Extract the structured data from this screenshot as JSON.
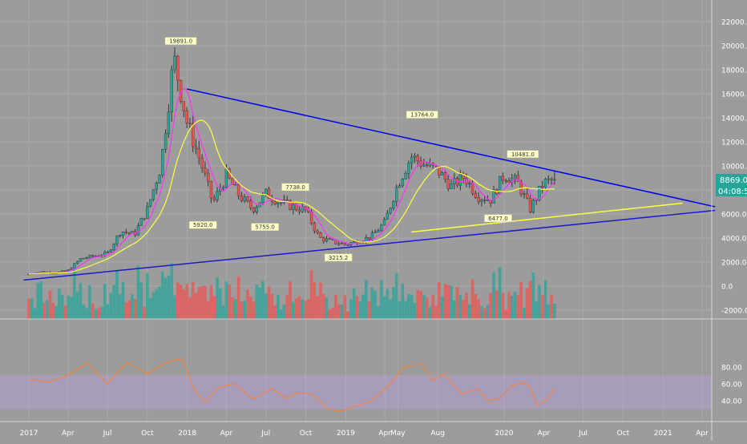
{
  "chart_data": [
    {
      "type": "candlestick",
      "title": "",
      "instrument_hint": "weekly candles",
      "x_ticks": [
        "2017",
        "Apr",
        "Jul",
        "Oct",
        "2018",
        "Apr",
        "Jul",
        "Oct",
        "2019",
        "Apr",
        "May",
        "Aug",
        "2020",
        "Apr",
        "Jul",
        "Oct",
        "2021",
        "Apr"
      ],
      "x_tick_dates": [
        "2017-01-01",
        "2017-04-01",
        "2017-07-01",
        "2017-10-01",
        "2018-01-01",
        "2018-04-01",
        "2018-07-01",
        "2018-10-01",
        "2019-01-01",
        "2019-04-01",
        "2019-05-01",
        "2019-08-01",
        "2020-01-01",
        "2020-04-01",
        "2020-07-01",
        "2020-10-01",
        "2021-01-01",
        "2021-04-01"
      ],
      "y_ticks": [
        "22000.0",
        "20000.0",
        "18000.0",
        "16000.0",
        "14000.0",
        "12000.0",
        "10000.0",
        "8000.0",
        "6000.0",
        "4000.0",
        "2000.0",
        "0.0",
        "-2000.0"
      ],
      "ylim": [
        -2000,
        22000
      ],
      "last_price_label": "8869.0",
      "countdown_label": "04:08:54",
      "peak_labels": [
        {
          "text": "19891.0",
          "date": "2017-12-17",
          "price": 19891
        },
        {
          "text": "5920.0",
          "date": "2018-02-06",
          "price": 5920
        },
        {
          "text": "5755.0",
          "date": "2018-06-29",
          "price": 5755
        },
        {
          "text": "7738.0",
          "date": "2018-09-07",
          "price": 7738
        },
        {
          "text": "3215.2",
          "date": "2018-12-15",
          "price": 3215
        },
        {
          "text": "13764.0",
          "date": "2019-06-26",
          "price": 13764
        },
        {
          "text": "6477.0",
          "date": "2019-12-18",
          "price": 6477
        },
        {
          "text": "10481.0",
          "date": "2020-02-13",
          "price": 10481
        }
      ],
      "series": [
        {
          "type": "candlestick",
          "close": [
            {
              "date": "2017-01-01",
              "close": 1000
            },
            {
              "date": "2017-02-01",
              "close": 1200
            },
            {
              "date": "2017-03-01",
              "close": 1100
            },
            {
              "date": "2017-04-01",
              "close": 1300
            },
            {
              "date": "2017-05-01",
              "close": 2300
            },
            {
              "date": "2017-06-01",
              "close": 2500
            },
            {
              "date": "2017-07-01",
              "close": 2700
            },
            {
              "date": "2017-08-01",
              "close": 4600
            },
            {
              "date": "2017-09-01",
              "close": 4300
            },
            {
              "date": "2017-10-01",
              "close": 6400
            },
            {
              "date": "2017-11-01",
              "close": 10000
            },
            {
              "date": "2017-12-01",
              "close": 19000
            },
            {
              "date": "2018-01-01",
              "close": 13500
            },
            {
              "date": "2018-02-01",
              "close": 10300
            },
            {
              "date": "2018-03-01",
              "close": 6900
            },
            {
              "date": "2018-04-01",
              "close": 9200
            },
            {
              "date": "2018-05-01",
              "close": 7500
            },
            {
              "date": "2018-06-01",
              "close": 6400
            },
            {
              "date": "2018-07-01",
              "close": 7700
            },
            {
              "date": "2018-08-01",
              "close": 7000
            },
            {
              "date": "2018-09-01",
              "close": 6600
            },
            {
              "date": "2018-10-01",
              "close": 6300
            },
            {
              "date": "2018-11-01",
              "close": 4000
            },
            {
              "date": "2018-12-01",
              "close": 3700
            },
            {
              "date": "2019-01-01",
              "close": 3450
            },
            {
              "date": "2019-02-01",
              "close": 3800
            },
            {
              "date": "2019-03-01",
              "close": 4100
            },
            {
              "date": "2019-04-01",
              "close": 5300
            },
            {
              "date": "2019-05-01",
              "close": 8500
            },
            {
              "date": "2019-06-01",
              "close": 10800
            },
            {
              "date": "2019-07-01",
              "close": 10100
            },
            {
              "date": "2019-08-01",
              "close": 9600
            },
            {
              "date": "2019-09-01",
              "close": 8300
            },
            {
              "date": "2019-10-01",
              "close": 9100
            },
            {
              "date": "2019-11-01",
              "close": 7500
            },
            {
              "date": "2019-12-01",
              "close": 7200
            },
            {
              "date": "2020-01-01",
              "close": 9300
            },
            {
              "date": "2020-02-01",
              "close": 8600
            },
            {
              "date": "2020-03-01",
              "close": 6400
            },
            {
              "date": "2020-04-01",
              "close": 8600
            },
            {
              "date": "2020-04-27",
              "close": 8869
            }
          ]
        },
        {
          "type": "line",
          "name": "",
          "color": "#ff30ff",
          "role": "fast moving average"
        },
        {
          "type": "line",
          "name": "",
          "color": "#ffff40",
          "role": "slow moving average"
        }
      ],
      "trendlines": [
        {
          "color": "#0000ee",
          "from": {
            "date": "2017-12-31",
            "price": 16400
          },
          "to": {
            "date": "2021-05-01",
            "price": 6600
          }
        },
        {
          "color": "#1a1acc",
          "from": {
            "date": "2016-12-20",
            "price": 500
          },
          "to": {
            "date": "2021-05-01",
            "price": 6300
          }
        },
        {
          "color": "#ffff40",
          "from": {
            "date": "2019-06-01",
            "price": 4500
          },
          "to": {
            "date": "2021-02-15",
            "price": 6900
          }
        }
      ],
      "volume_colors": {
        "up": "#26a69a",
        "down": "#ef5350"
      }
    },
    {
      "type": "line",
      "title": "",
      "y_ticks": [
        "80.00",
        "60.00",
        "40.00"
      ],
      "ylim": [
        25,
        95
      ],
      "band": [
        30,
        70
      ],
      "band_color": "#b59fe0",
      "series": [
        {
          "name": "",
          "color": "#ff7f27",
          "values": [
            {
              "date": "2017-01-01",
              "v": 66
            },
            {
              "date": "2017-02-15",
              "v": 62
            },
            {
              "date": "2017-04-01",
              "v": 70
            },
            {
              "date": "2017-05-15",
              "v": 85
            },
            {
              "date": "2017-07-01",
              "v": 60
            },
            {
              "date": "2017-08-15",
              "v": 86
            },
            {
              "date": "2017-10-01",
              "v": 72
            },
            {
              "date": "2017-11-15",
              "v": 86
            },
            {
              "date": "2017-12-20",
              "v": 90
            },
            {
              "date": "2018-01-15",
              "v": 55
            },
            {
              "date": "2018-02-10",
              "v": 38
            },
            {
              "date": "2018-03-15",
              "v": 56
            },
            {
              "date": "2018-04-20",
              "v": 60
            },
            {
              "date": "2018-06-01",
              "v": 42
            },
            {
              "date": "2018-07-15",
              "v": 55
            },
            {
              "date": "2018-08-15",
              "v": 43
            },
            {
              "date": "2018-09-15",
              "v": 50
            },
            {
              "date": "2018-10-15",
              "v": 48
            },
            {
              "date": "2018-11-20",
              "v": 30
            },
            {
              "date": "2018-12-20",
              "v": 27
            },
            {
              "date": "2019-01-20",
              "v": 33
            },
            {
              "date": "2019-03-01",
              "v": 40
            },
            {
              "date": "2019-04-10",
              "v": 58
            },
            {
              "date": "2019-05-15",
              "v": 80
            },
            {
              "date": "2019-06-25",
              "v": 84
            },
            {
              "date": "2019-07-20",
              "v": 64
            },
            {
              "date": "2019-08-15",
              "v": 72
            },
            {
              "date": "2019-09-25",
              "v": 48
            },
            {
              "date": "2019-11-01",
              "v": 54
            },
            {
              "date": "2019-11-25",
              "v": 40
            },
            {
              "date": "2019-12-20",
              "v": 42
            },
            {
              "date": "2020-01-20",
              "v": 58
            },
            {
              "date": "2020-02-15",
              "v": 62
            },
            {
              "date": "2020-03-01",
              "v": 56
            },
            {
              "date": "2020-03-15",
              "v": 35
            },
            {
              "date": "2020-04-01",
              "v": 38
            },
            {
              "date": "2020-04-15",
              "v": 46
            },
            {
              "date": "2020-04-27",
              "v": 55
            }
          ]
        }
      ]
    }
  ]
}
